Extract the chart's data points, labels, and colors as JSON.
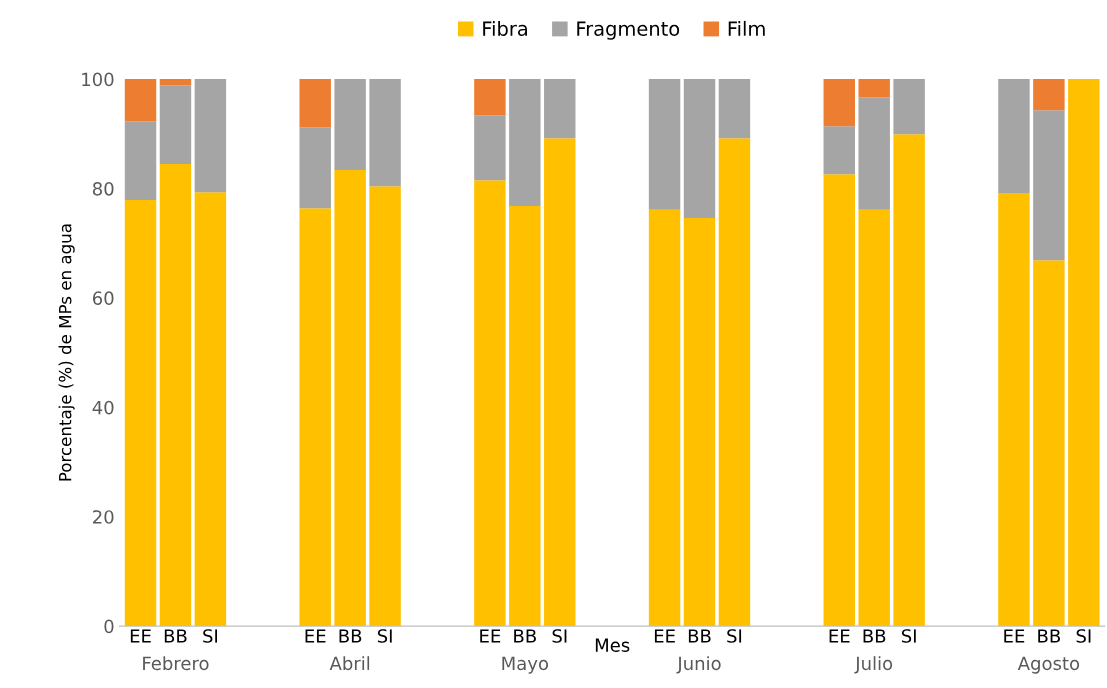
{
  "chart_data": {
    "type": "bar",
    "stacked": true,
    "ylabel": "Porcentaje (%) de MPs en agua",
    "xlabel": "Mes",
    "categories": [
      "EE",
      "BB",
      "SI",
      null,
      null,
      "EE",
      "BB",
      "SI",
      null,
      null,
      "EE",
      "BB",
      "SI",
      null,
      null,
      "EE",
      "BB",
      "SI",
      null,
      null,
      "EE",
      "BB",
      "SI",
      null,
      null,
      "EE",
      "BB",
      "SI"
    ],
    "series": [
      {
        "name": "Fibra",
        "color": "#ffc000",
        "values": [
          77.9,
          84.5,
          79.3,
          null,
          null,
          76.4,
          83.4,
          80.4,
          null,
          null,
          81.5,
          76.8,
          89.2,
          null,
          null,
          76.1,
          74.6,
          89.2,
          null,
          null,
          82.6,
          76.1,
          89.9,
          null,
          null,
          79.2,
          66.9,
          100
        ]
      },
      {
        "name": "Fragmento",
        "color": "#a5a5a5",
        "values": [
          14.4,
          14.4,
          20.7,
          null,
          null,
          14.8,
          16.6,
          19.6,
          null,
          null,
          11.9,
          23.2,
          10.8,
          null,
          null,
          23.9,
          25.4,
          10.8,
          null,
          null,
          8.8,
          20.6,
          10.1,
          null,
          null,
          20.8,
          27.4,
          0
        ]
      },
      {
        "name": "Film",
        "color": "#ed7d31",
        "values": [
          7.7,
          1.1,
          0,
          null,
          null,
          8.8,
          0,
          0,
          null,
          null,
          6.6,
          0,
          0,
          null,
          null,
          0,
          0,
          0,
          null,
          null,
          8.6,
          3.3,
          0,
          null,
          null,
          0,
          5.7,
          0
        ]
      }
    ],
    "annotations": [
      "Febrero",
      "Abril",
      "Mayo",
      "Junio",
      "Julio",
      "Agosto"
    ],
    "ylim": [
      0,
      100
    ],
    "yticks": [
      0,
      20,
      40,
      60,
      80,
      100
    ],
    "grid": false,
    "legend": "top"
  }
}
